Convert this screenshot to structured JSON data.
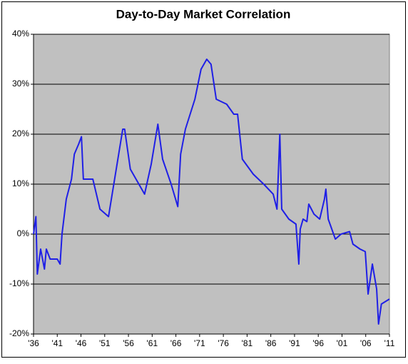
{
  "chart_data": {
    "type": "line",
    "title": "Day-to-Day Market Correlation",
    "x": [
      1936.0,
      1936.5,
      1936.8,
      1937.5,
      1938.3,
      1938.7,
      1939.5,
      1941.0,
      1941.6,
      1942.0,
      1942.9,
      1944.0,
      1944.6,
      1945.5,
      1946.1,
      1946.5,
      1948.5,
      1950.0,
      1951.8,
      1954.8,
      1955.2,
      1956.4,
      1959.4,
      1960.8,
      1962.2,
      1963.2,
      1965.0,
      1966.4,
      1967.0,
      1968.0,
      1970.0,
      1971.3,
      1972.5,
      1973.4,
      1974.5,
      1976.7,
      1978.2,
      1979.0,
      1980.0,
      1982.3,
      1984.5,
      1986.5,
      1987.3,
      1987.9,
      1988.3,
      1989.8,
      1991.3,
      1991.9,
      1992.2,
      1992.8,
      1993.6,
      1994.0,
      1995.1,
      1996.3,
      1997.3,
      1997.6,
      1998.1,
      1999.6,
      2000.8,
      2002.6,
      2003.3,
      2004.8,
      2005.9,
      2006.5,
      2007.4,
      2008.3,
      2008.7,
      2009.3,
      2011.0
    ],
    "series": [
      {
        "color": "#1f1fe6",
        "values": [
          0,
          3.5,
          -8,
          -3,
          -7,
          -3,
          -5,
          -5,
          -6,
          0,
          7,
          11,
          16,
          18,
          19.5,
          11,
          11,
          5,
          3.5,
          21,
          21,
          13,
          8,
          14,
          22,
          15,
          10,
          5.5,
          16,
          21,
          27,
          33,
          35,
          34,
          27,
          26,
          24,
          24,
          15,
          12,
          10,
          8,
          5,
          20,
          5,
          3,
          2,
          -6,
          1,
          3,
          2.5,
          6,
          4,
          3,
          7,
          9,
          3,
          -1,
          0,
          0.5,
          -2,
          -3,
          -3.5,
          -12,
          -6,
          -11,
          -18,
          -14,
          -13
        ]
      }
    ],
    "xlim": [
      1936,
      2011
    ],
    "xticks": [
      {
        "value": 1936,
        "label": "'36"
      },
      {
        "value": 1941,
        "label": "'41"
      },
      {
        "value": 1946,
        "label": "'46"
      },
      {
        "value": 1951,
        "label": "'51"
      },
      {
        "value": 1956,
        "label": "'56"
      },
      {
        "value": 1961,
        "label": "'61"
      },
      {
        "value": 1966,
        "label": "'66"
      },
      {
        "value": 1971,
        "label": "'71"
      },
      {
        "value": 1976,
        "label": "'76"
      },
      {
        "value": 1981,
        "label": "'81"
      },
      {
        "value": 1986,
        "label": "'86"
      },
      {
        "value": 1991,
        "label": "'91"
      },
      {
        "value": 1996,
        "label": "'96"
      },
      {
        "value": 2001,
        "label": "'01"
      },
      {
        "value": 2006,
        "label": "'06"
      },
      {
        "value": 2011,
        "label": "'11"
      }
    ],
    "ylim": [
      -20,
      40
    ],
    "yticks": [
      {
        "value": -20,
        "label": "-20%"
      },
      {
        "value": -10,
        "label": "-10%"
      },
      {
        "value": 0,
        "label": "0%"
      },
      {
        "value": 10,
        "label": "10%"
      },
      {
        "value": 20,
        "label": "20%"
      },
      {
        "value": 30,
        "label": "30%"
      },
      {
        "value": 40,
        "label": "40%"
      }
    ],
    "grid": true
  }
}
